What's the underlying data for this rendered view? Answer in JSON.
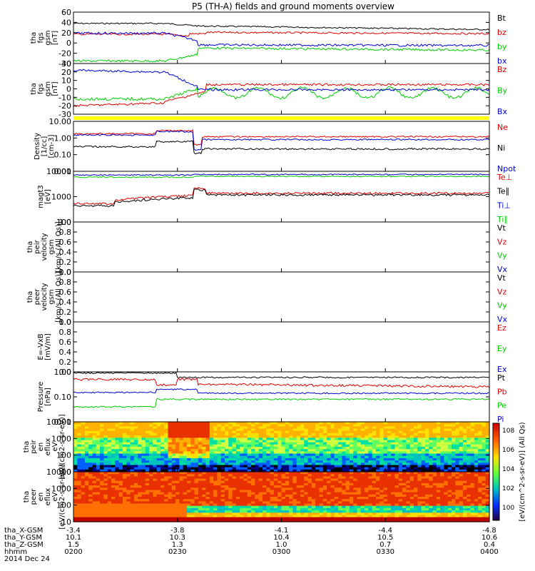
{
  "title": "P5 (TH-A) fields and ground moments overview",
  "date_label": "2014 Dec 24",
  "footer_rows": [
    {
      "label": "tha_X-GSM",
      "values": [
        "-3.4",
        "-3.8",
        "-4.1",
        "-4.4",
        "-4.8"
      ]
    },
    {
      "label": "tha_Y-GSM",
      "values": [
        "10.1",
        "10.3",
        "10.4",
        "10.5",
        "10.6"
      ]
    },
    {
      "label": "tha_Z-GSM",
      "values": [
        "1.5",
        "1.3",
        "1.0",
        "0.7",
        "0.4"
      ]
    },
    {
      "label": "hhmm",
      "values": [
        "0200",
        "0230",
        "0300",
        "0330",
        "0400"
      ]
    }
  ],
  "colors": {
    "black": "#000000",
    "red": "#e00000",
    "green": "#00cc00",
    "blue": "#0000d0",
    "yellow": "#ffff00"
  },
  "colorbar_label": "[eV/(cm^2-s-sr-eV)] (All Qs)",
  "colorbar_ticks": [
    "10^8",
    "10^6",
    "10^4",
    "10^2",
    "10^0"
  ],
  "chart_data": [
    {
      "type": "line",
      "ylabel": [
        "tha",
        "fgs",
        "gsm",
        "[nT]"
      ],
      "ylim": [
        -40,
        60
      ],
      "yticks": [
        "60",
        "40",
        "20",
        "0",
        "-20",
        "-40"
      ],
      "series": [
        {
          "name": "Bt",
          "color": "black"
        },
        {
          "name": "bz",
          "color": "red"
        },
        {
          "name": "by",
          "color": "green"
        },
        {
          "name": "bx",
          "color": "blue"
        }
      ],
      "x": [
        "0200",
        "0230",
        "0300",
        "0330",
        "0400"
      ]
    },
    {
      "type": "line",
      "ylabel": [
        "tha",
        "fgs",
        "gsm",
        "[nT]"
      ],
      "ylim": [
        -30,
        30
      ],
      "yticks": [
        "30",
        "20",
        "10",
        "0",
        "-10",
        "-20",
        "-30"
      ],
      "series": [
        {
          "name": "Bz",
          "color": "red"
        },
        {
          "name": "By",
          "color": "green"
        },
        {
          "name": "Bx",
          "color": "blue"
        }
      ]
    },
    {
      "type": "bar",
      "description": "yellow status bar"
    },
    {
      "type": "line",
      "scale": "log",
      "ylabel": [
        "Density",
        "[1/cc]",
        "[cm-3]"
      ],
      "ylim": [
        0.01,
        10
      ],
      "yticks": [
        "10.00",
        "1.00",
        "0.10",
        "0.01"
      ],
      "series": [
        {
          "name": "Ne",
          "color": "red"
        },
        {
          "name": "Ni",
          "color": "black"
        },
        {
          "name": "Npot",
          "color": "blue"
        }
      ]
    },
    {
      "type": "line",
      "scale": "log",
      "ylabel": [
        "magt3",
        "[eV]"
      ],
      "ylim": [
        10,
        10000
      ],
      "yticks": [
        "10000",
        "1000",
        "100"
      ],
      "series": [
        {
          "name": "Te⊥",
          "color": "red"
        },
        {
          "name": "Te∥",
          "color": "black"
        },
        {
          "name": "Ti⊥",
          "color": "blue"
        },
        {
          "name": "Ti∥",
          "color": "green"
        }
      ]
    },
    {
      "type": "line",
      "ylabel": [
        "tha",
        "peir",
        "velocity",
        "gsm",
        "[km/s (All Qs)]"
      ],
      "ylim": [
        0,
        1
      ],
      "yticks": [
        "1.0",
        "0.8",
        "0.6",
        "0.4",
        "0.2",
        "0.0"
      ],
      "series": [
        {
          "name": "Vt",
          "color": "black"
        },
        {
          "name": "Vz",
          "color": "red"
        },
        {
          "name": "Vy",
          "color": "green"
        },
        {
          "name": "Vx",
          "color": "blue"
        }
      ]
    },
    {
      "type": "line",
      "ylabel": [
        "tha",
        "peer",
        "velocity",
        "gsm",
        "[km/s (All Qs)]"
      ],
      "ylim": [
        0,
        1
      ],
      "yticks": [
        "1.0",
        "0.8",
        "0.6",
        "0.4",
        "0.2",
        "0.0"
      ],
      "series": [
        {
          "name": "Vt",
          "color": "black"
        },
        {
          "name": "Vz",
          "color": "red"
        },
        {
          "name": "Vy",
          "color": "green"
        },
        {
          "name": "Vx",
          "color": "blue"
        }
      ]
    },
    {
      "type": "line",
      "ylabel": [
        "E=-VxB",
        "[mV/m]"
      ],
      "ylim": [
        0,
        1
      ],
      "yticks": [
        "1.0",
        "0.8",
        "0.6",
        "0.4",
        "0.2",
        "0.0"
      ],
      "series": [
        {
          "name": "Ez",
          "color": "red"
        },
        {
          "name": "Ey",
          "color": "green"
        },
        {
          "name": "Ex",
          "color": "blue"
        }
      ]
    },
    {
      "type": "line",
      "scale": "log",
      "ylabel": [
        "Pressure",
        "[nPa]"
      ],
      "ylim": [
        0.01,
        1
      ],
      "yticks": [
        "1.00",
        "0.10",
        "0.01"
      ],
      "series": [
        {
          "name": "Pt",
          "color": "black"
        },
        {
          "name": "Pb",
          "color": "red"
        },
        {
          "name": "Pe",
          "color": "green"
        },
        {
          "name": "Pi",
          "color": "blue"
        }
      ]
    },
    {
      "type": "heatmap",
      "ylabel": [
        "tha",
        "peir",
        "en",
        "eflux",
        "eV",
        "[eV/(cm2-s-sr-eV)]"
      ],
      "yticks": [
        "10000",
        "1000",
        "100",
        "10"
      ]
    },
    {
      "type": "heatmap",
      "ylabel": [
        "tha",
        "peer",
        "en",
        "eflux",
        "eV",
        "[eV/(cm2-s-sr-eV)]"
      ],
      "yticks": [
        "10000",
        "1000",
        "100",
        "10"
      ]
    }
  ]
}
